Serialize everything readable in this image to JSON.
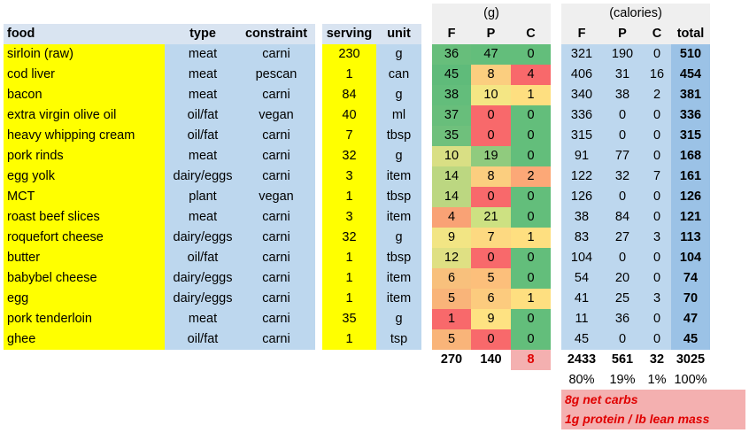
{
  "headers": {
    "food": "food",
    "type": "type",
    "constraint": "constraint",
    "serving": "serving",
    "unit": "unit",
    "grams_group": "(g)",
    "calories_group": "(calories)",
    "f": "F",
    "p": "P",
    "c": "C",
    "cf": "F",
    "cp": "P",
    "cc": "C",
    "total": "total"
  },
  "rows": [
    {
      "food": "sirloin (raw)",
      "type": "meat",
      "constraint": "carni",
      "serving": "230",
      "unit": "g",
      "f": "36",
      "p": "47",
      "c": "0",
      "cf": "321",
      "cp": "190",
      "cc": "0",
      "total": "510"
    },
    {
      "food": "cod liver",
      "type": "meat",
      "constraint": "pescan",
      "serving": "1",
      "unit": "can",
      "f": "45",
      "p": "8",
      "c": "4",
      "cf": "406",
      "cp": "31",
      "cc": "16",
      "total": "454"
    },
    {
      "food": "bacon",
      "type": "meat",
      "constraint": "carni",
      "serving": "84",
      "unit": "g",
      "f": "38",
      "p": "10",
      "c": "1",
      "cf": "340",
      "cp": "38",
      "cc": "2",
      "total": "381"
    },
    {
      "food": "extra virgin olive oil",
      "type": "oil/fat",
      "constraint": "vegan",
      "serving": "40",
      "unit": "ml",
      "f": "37",
      "p": "0",
      "c": "0",
      "cf": "336",
      "cp": "0",
      "cc": "0",
      "total": "336"
    },
    {
      "food": "heavy whipping cream",
      "type": "oil/fat",
      "constraint": "carni",
      "serving": "7",
      "unit": "tbsp",
      "f": "35",
      "p": "0",
      "c": "0",
      "cf": "315",
      "cp": "0",
      "cc": "0",
      "total": "315"
    },
    {
      "food": "pork rinds",
      "type": "meat",
      "constraint": "carni",
      "serving": "32",
      "unit": "g",
      "f": "10",
      "p": "19",
      "c": "0",
      "cf": "91",
      "cp": "77",
      "cc": "0",
      "total": "168"
    },
    {
      "food": "egg yolk",
      "type": "dairy/eggs",
      "constraint": "carni",
      "serving": "3",
      "unit": "item",
      "f": "14",
      "p": "8",
      "c": "2",
      "cf": "122",
      "cp": "32",
      "cc": "7",
      "total": "161"
    },
    {
      "food": "MCT",
      "type": "plant",
      "constraint": "vegan",
      "serving": "1",
      "unit": "tbsp",
      "f": "14",
      "p": "0",
      "c": "0",
      "cf": "126",
      "cp": "0",
      "cc": "0",
      "total": "126"
    },
    {
      "food": "roast beef slices",
      "type": "meat",
      "constraint": "carni",
      "serving": "3",
      "unit": "item",
      "f": "4",
      "p": "21",
      "c": "0",
      "cf": "38",
      "cp": "84",
      "cc": "0",
      "total": "121"
    },
    {
      "food": "roquefort cheese",
      "type": "dairy/eggs",
      "constraint": "carni",
      "serving": "32",
      "unit": "g",
      "f": "9",
      "p": "7",
      "c": "1",
      "cf": "83",
      "cp": "27",
      "cc": "3",
      "total": "113"
    },
    {
      "food": "butter",
      "type": "oil/fat",
      "constraint": "carni",
      "serving": "1",
      "unit": "tbsp",
      "f": "12",
      "p": "0",
      "c": "0",
      "cf": "104",
      "cp": "0",
      "cc": "0",
      "total": "104"
    },
    {
      "food": "babybel cheese",
      "type": "dairy/eggs",
      "constraint": "carni",
      "serving": "1",
      "unit": "item",
      "f": "6",
      "p": "5",
      "c": "0",
      "cf": "54",
      "cp": "20",
      "cc": "0",
      "total": "74"
    },
    {
      "food": "egg",
      "type": "dairy/eggs",
      "constraint": "carni",
      "serving": "1",
      "unit": "item",
      "f": "5",
      "p": "6",
      "c": "1",
      "cf": "41",
      "cp": "25",
      "cc": "3",
      "total": "70"
    },
    {
      "food": "pork tenderloin",
      "type": "meat",
      "constraint": "carni",
      "serving": "35",
      "unit": "g",
      "f": "1",
      "p": "9",
      "c": "0",
      "cf": "11",
      "cp": "36",
      "cc": "0",
      "total": "47"
    },
    {
      "food": "ghee",
      "type": "oil/fat",
      "constraint": "carni",
      "serving": "1",
      "unit": "tsp",
      "f": "5",
      "p": "0",
      "c": "0",
      "cf": "45",
      "cp": "0",
      "cc": "0",
      "total": "45"
    }
  ],
  "heat_colors": {
    "f": [
      "#67be7b",
      "#5fbb7a",
      "#63bd7b",
      "#68be7b",
      "#6fc07c",
      "#d9df84",
      "#bcd781",
      "#bcd781",
      "#f9a275",
      "#f2e584",
      "#dfe083",
      "#f8c07c",
      "#f9b479",
      "#f8696b",
      "#f9b479"
    ],
    "p": [
      "#63be7b",
      "#fbce7f",
      "#f4e684",
      "#f8696b",
      "#f8696b",
      "#90cb7e",
      "#fbce7f",
      "#f8696b",
      "#cde182",
      "#fdd981",
      "#f8696b",
      "#fcbf7b",
      "#fccb7e",
      "#fee282",
      "#f8696b"
    ],
    "c": [
      "#63be7b",
      "#f8696b",
      "#fedf80",
      "#63be7b",
      "#63be7b",
      "#63be7b",
      "#fca877",
      "#63be7b",
      "#63be7b",
      "#fedf80",
      "#63be7b",
      "#63be7b",
      "#fedf80",
      "#63be7b",
      "#63be7b"
    ]
  },
  "totals": {
    "f": "270",
    "p": "140",
    "c": "8",
    "cf": "2433",
    "cp": "561",
    "cc": "32",
    "total": "3025"
  },
  "percents": {
    "cf": "80%",
    "cp": "19%",
    "cc": "1%",
    "total": "100%"
  },
  "notes": [
    "8g net carbs",
    "1g protein / lb lean mass"
  ],
  "colors": {
    "header_blue": "#d9e4f1",
    "light_blue": "#bdd7ee",
    "yellow": "#ffff00",
    "gray": "#efefef",
    "total_blue": "#9bc2e6",
    "warn_red": "#f4b0b0",
    "warn_text": "#e00000"
  }
}
